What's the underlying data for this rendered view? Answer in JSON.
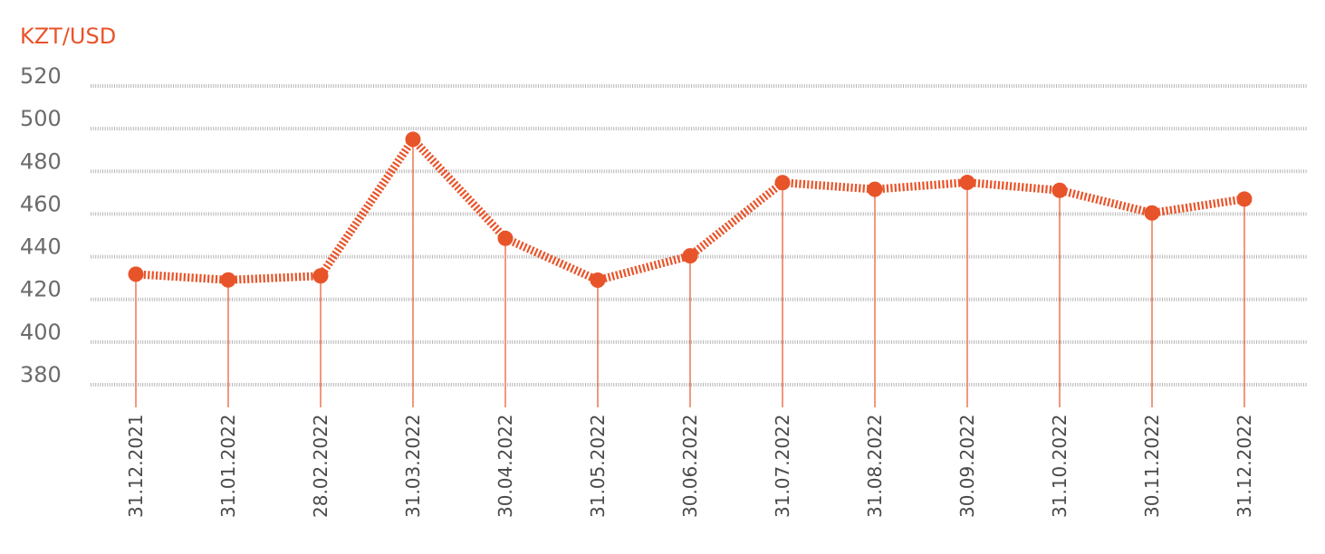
{
  "chart_data": {
    "type": "line",
    "unit_label": "KZT/USD",
    "categories": [
      "31.12.2021",
      "31.01.2022",
      "28.02.2022",
      "31.03.2022",
      "30.04.2022",
      "31.05.2022",
      "30.06.2022",
      "31.07.2022",
      "31.08.2022",
      "30.09.2022",
      "31.10.2022",
      "30.11.2022",
      "31.12.2022"
    ],
    "values": [
      431.8,
      429.1,
      431.0,
      495.0,
      448.6,
      429.0,
      440.4,
      474.7,
      471.6,
      474.8,
      471.1,
      460.5,
      467.0
    ],
    "y_ticks": [
      520,
      500,
      480,
      460,
      440,
      420,
      400,
      380
    ],
    "ylim": [
      380,
      520
    ],
    "grid": true,
    "line_color": "#e8542a",
    "marker_color": "#e8542a",
    "gridline_color": "#b5b5b5"
  }
}
